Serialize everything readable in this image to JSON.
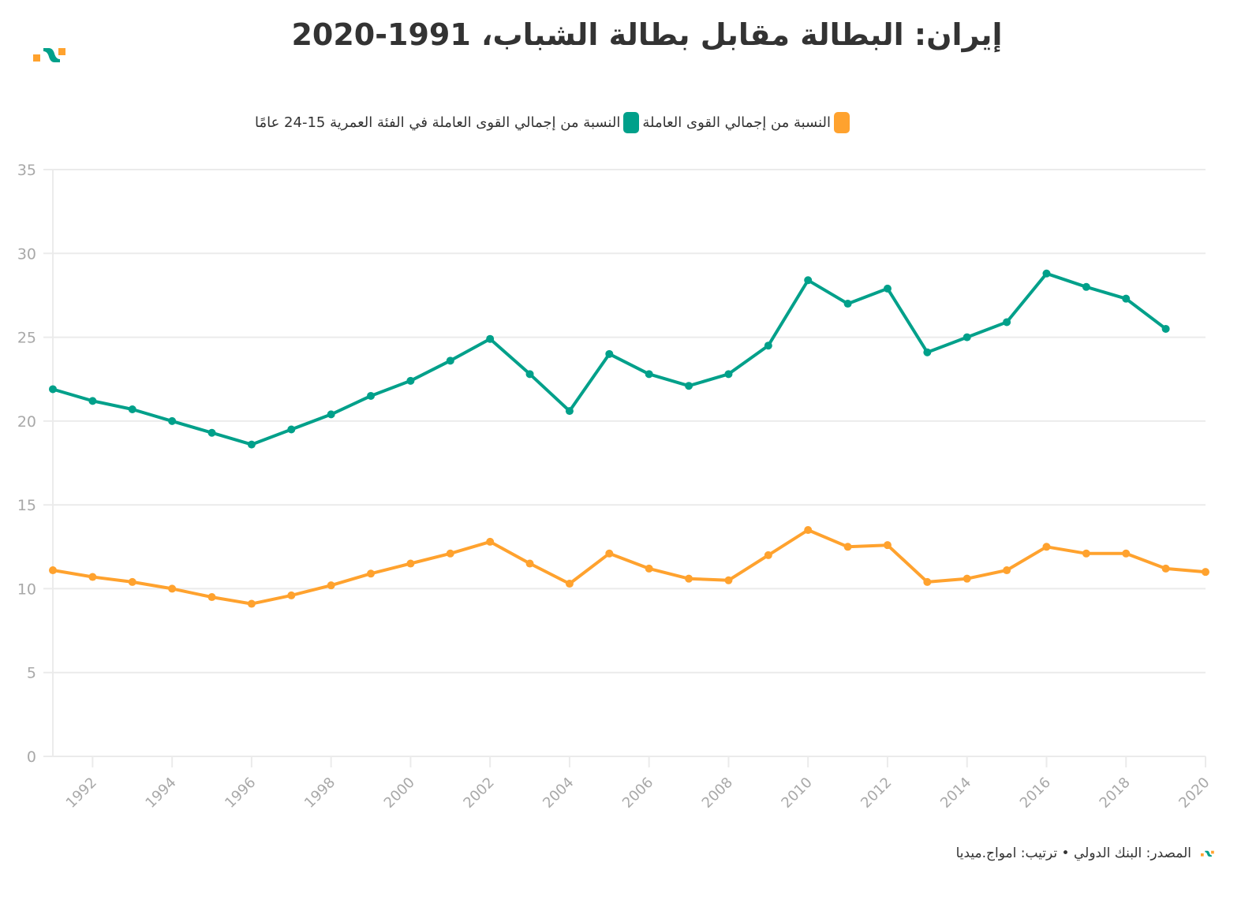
{
  "header": {
    "title": "إيران: البطالة مقابل بطالة الشباب، 1991-2020",
    "logo_icon": "amwaj-logo-icon"
  },
  "legend": [
    {
      "label": "النسبة من إجمالي القوى العاملة في الفئة العمرية 15-24 عامًا",
      "color": "#00a08a"
    },
    {
      "label": "النسبة من إجمالي القوى العاملة",
      "color": "#ffa22e"
    }
  ],
  "footer": {
    "text": "المصدر: البنك الدولي • ترتيب: امواج.ميديا",
    "logo_icon": "amwaj-logo-small-icon"
  },
  "chart_data": {
    "type": "line",
    "title": "إيران: البطالة مقابل بطالة الشباب، 1991-2020",
    "xlabel": "",
    "ylabel": "",
    "xlim": [
      1991,
      2020
    ],
    "ylim": [
      0,
      35
    ],
    "grid": true,
    "legend_position": "top",
    "y_ticks": [
      "0",
      "5",
      "10",
      "15",
      "20",
      "25",
      "30",
      "35"
    ],
    "y_tick_values": [
      0,
      5,
      10,
      15,
      20,
      25,
      30,
      35
    ],
    "x_ticks": [
      "1992",
      "1994",
      "1996",
      "1998",
      "2000",
      "2002",
      "2004",
      "2006",
      "2008",
      "2010",
      "2012",
      "2014",
      "2016",
      "2018",
      "2020"
    ],
    "x_tick_values": [
      1992,
      1994,
      1996,
      1998,
      2000,
      2002,
      2004,
      2006,
      2008,
      2010,
      2012,
      2014,
      2016,
      2018,
      2020
    ],
    "series": [
      {
        "name": "النسبة من إجمالي القوى العاملة في الفئة العمرية 15-24 عامًا",
        "color": "#00a08a",
        "x": [
          1991,
          1992,
          1993,
          1994,
          1995,
          1996,
          1997,
          1998,
          1999,
          2000,
          2001,
          2002,
          2003,
          2004,
          2005,
          2006,
          2007,
          2008,
          2009,
          2010,
          2011,
          2012,
          2013,
          2014,
          2015,
          2016,
          2017,
          2018,
          2019
        ],
        "values": [
          21.9,
          21.2,
          20.7,
          20.0,
          19.3,
          18.6,
          19.5,
          20.4,
          21.5,
          22.4,
          23.6,
          24.9,
          22.8,
          20.6,
          24.0,
          22.8,
          22.1,
          22.8,
          24.5,
          28.4,
          27.0,
          27.9,
          24.1,
          25.0,
          25.9,
          28.8,
          28.0,
          27.3,
          25.5
        ]
      },
      {
        "name": "النسبة من إجمالي القوى العاملة",
        "color": "#ffa22e",
        "x": [
          1991,
          1992,
          1993,
          1994,
          1995,
          1996,
          1997,
          1998,
          1999,
          2000,
          2001,
          2002,
          2003,
          2004,
          2005,
          2006,
          2007,
          2008,
          2009,
          2010,
          2011,
          2012,
          2013,
          2014,
          2015,
          2016,
          2017,
          2018,
          2019,
          2020
        ],
        "values": [
          11.1,
          10.7,
          10.4,
          10.0,
          9.5,
          9.1,
          9.6,
          10.2,
          10.9,
          11.5,
          12.1,
          12.8,
          11.5,
          10.3,
          12.1,
          11.2,
          10.6,
          10.5,
          12.0,
          13.5,
          12.5,
          12.6,
          10.4,
          10.6,
          11.1,
          12.5,
          12.1,
          12.1,
          11.2,
          11.0
        ]
      }
    ]
  }
}
